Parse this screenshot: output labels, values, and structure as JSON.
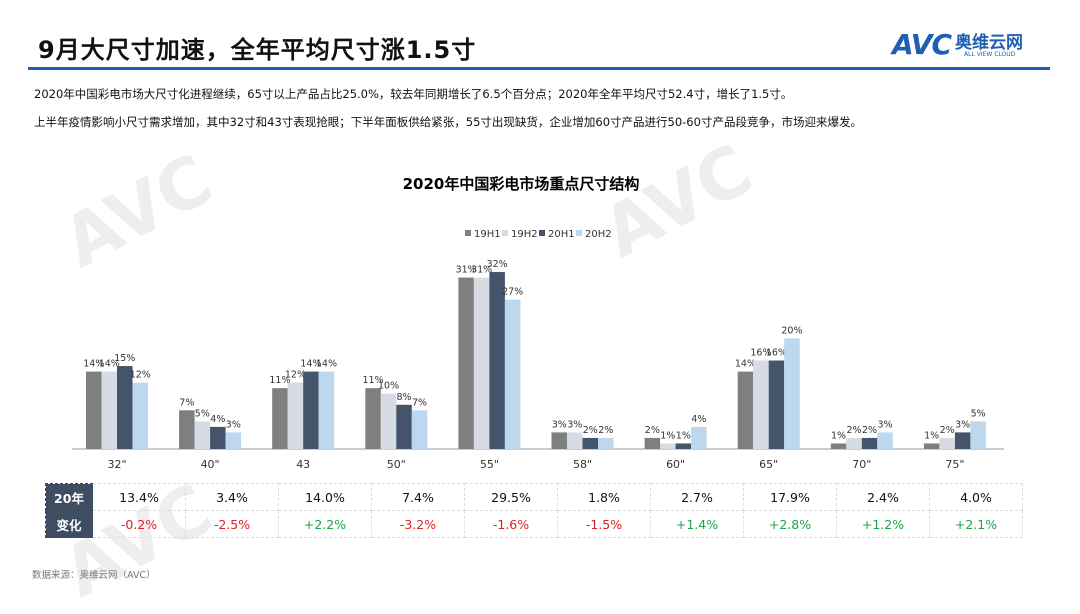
{
  "header": {
    "title": "9月大尺寸加速，全年平均尺寸涨1.5寸",
    "logo_mark": "AVC",
    "logo_cn": "奥维云网",
    "logo_en": "ALL VIEW CLOUD"
  },
  "summary": [
    "2020年中国彩电市场大尺寸化进程继续，65寸以上产品占比25.0%，较去年同期增长了6.5个百分点；2020年全年平均尺寸52.4寸，增长了1.5寸。",
    "上半年疫情影响小尺寸需求增加，其中32寸和43寸表现抢眼；下半年面板供给紧张，55寸出现缺货，企业增加60寸产品进行50-60寸产品段竞争，市场迎来爆发。"
  ],
  "chart_data": {
    "type": "bar",
    "title": "2020年中国彩电市场重点尺寸结构",
    "categories": [
      "32\"",
      "40\"",
      "43",
      "50\"",
      "55\"",
      "58\"",
      "60\"",
      "65\"",
      "70\"",
      "75\""
    ],
    "series": [
      {
        "name": "19H1",
        "color": "#7f7f7f",
        "values": [
          14,
          7,
          11,
          11,
          31,
          3,
          2,
          14,
          1,
          1
        ]
      },
      {
        "name": "19H2",
        "color": "#d6dbe4",
        "values": [
          14,
          5,
          12,
          10,
          31,
          3,
          1,
          16,
          2,
          2
        ]
      },
      {
        "name": "20H1",
        "color": "#44546a",
        "values": [
          15,
          4,
          14,
          8,
          32,
          2,
          1,
          16,
          2,
          3
        ]
      },
      {
        "name": "20H2",
        "color": "#bdd7ee",
        "values": [
          12,
          3,
          14,
          7,
          27,
          2,
          4,
          20,
          3,
          5
        ]
      }
    ],
    "legend": "top-right",
    "ylim": [
      0,
      35
    ]
  },
  "table": {
    "row1_label": "20年",
    "row2_label": "变化",
    "values": [
      "13.4%",
      "3.4%",
      "14.0%",
      "7.4%",
      "29.5%",
      "1.8%",
      "2.7%",
      "17.9%",
      "2.4%",
      "4.0%"
    ],
    "changes": [
      "-0.2%",
      "-2.5%",
      "+2.2%",
      "-3.2%",
      "-1.6%",
      "-1.5%",
      "+1.4%",
      "+2.8%",
      "+1.2%",
      "+2.1%"
    ]
  },
  "source": "数据来源：奥维云网（AVC）"
}
